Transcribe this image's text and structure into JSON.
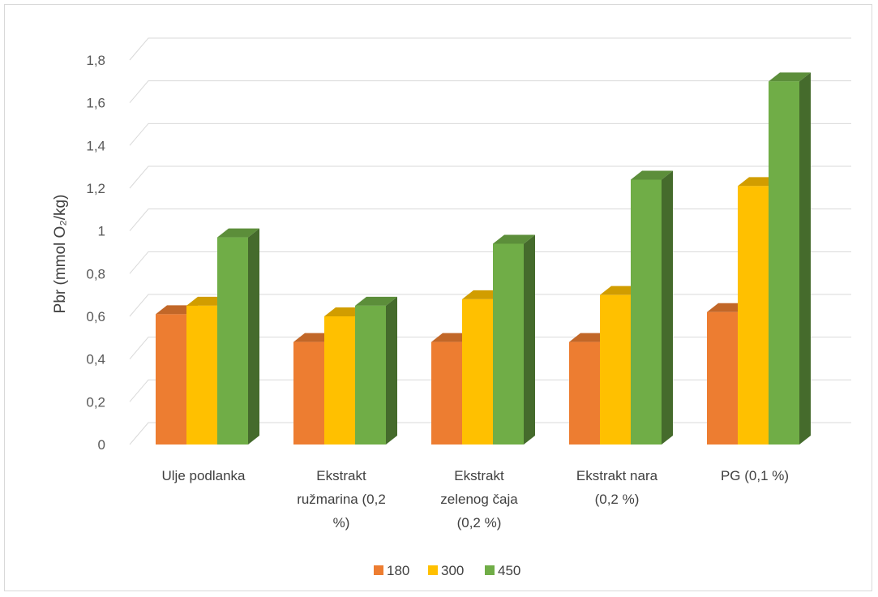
{
  "chart_data": {
    "type": "bar",
    "title": "",
    "xlabel": "",
    "ylabel": "Pbr (mmol  O₂/kg)",
    "ylim": [
      0,
      1.8
    ],
    "yticks": [
      "0",
      "0,2",
      "0,4",
      "0,6",
      "0,8",
      "1",
      "1,2",
      "1,4",
      "1,6",
      "1,8"
    ],
    "categories": [
      [
        "Ulje podlanka"
      ],
      [
        "Ekstrakt",
        "ružmarina  (0,2",
        "%)"
      ],
      [
        "Ekstrakt",
        "zelenog čaja",
        "(0,2 %)"
      ],
      [
        "Ekstrakt nara",
        "(0,2 %)"
      ],
      [
        "PG (0,1 %)"
      ]
    ],
    "series": [
      {
        "name": "180",
        "color": "#ed7d31",
        "values": [
          0.61,
          0.48,
          0.48,
          0.48,
          0.62
        ]
      },
      {
        "name": "300",
        "color": "#ffc000",
        "values": [
          0.65,
          0.6,
          0.68,
          0.7,
          1.21
        ]
      },
      {
        "name": "450",
        "color": "#70ad47",
        "values": [
          0.97,
          0.65,
          0.94,
          1.24,
          1.7
        ]
      }
    ],
    "grid": true,
    "legend_position": "bottom",
    "style": "3d-clustered-column"
  }
}
